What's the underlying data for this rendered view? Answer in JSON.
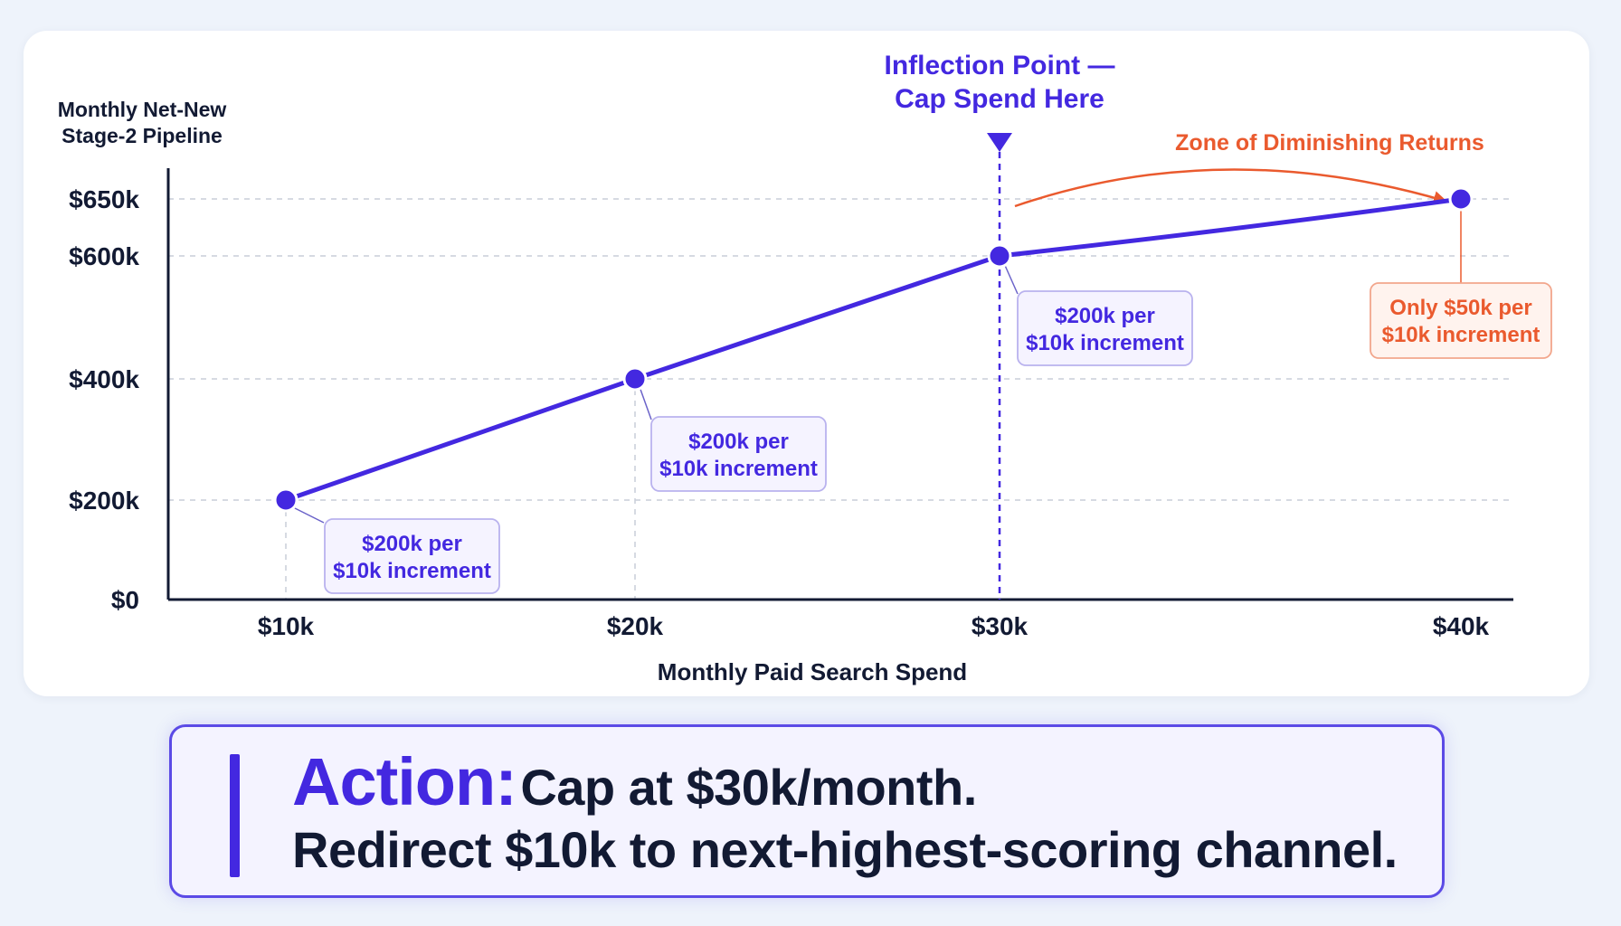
{
  "chart_data": {
    "type": "line",
    "ylabel": "Monthly Net-New\nStage-2 Pipeline",
    "xlabel": "Monthly Paid Search Spend",
    "x_ticks": [
      "$10k",
      "$20k",
      "$30k",
      "$40k"
    ],
    "y_ticks": [
      {
        "value": 0,
        "label": "$0"
      },
      {
        "value": 200,
        "label": "$200k"
      },
      {
        "value": 400,
        "label": "$400k"
      },
      {
        "value": 600,
        "label": "$600k"
      },
      {
        "value": 650,
        "label": "$650k"
      }
    ],
    "x": [
      10,
      20,
      30,
      40
    ],
    "values": [
      200,
      400,
      600,
      650
    ],
    "ylim": [
      0,
      650
    ],
    "grid": "horizontal dashed",
    "colors": {
      "series": "#4328e0",
      "axis": "#121a33",
      "grid": "#c9ced9",
      "warning": "#ea5a2e"
    },
    "annotations": [
      {
        "text": "$200k per\n$10k increment",
        "point": 0,
        "style": "primary"
      },
      {
        "text": "$200k per\n$10k increment",
        "point": 1,
        "style": "primary"
      },
      {
        "text": "$200k per\n$10k increment",
        "point": 2,
        "style": "primary"
      },
      {
        "text": "Only $50k per\n$10k increment",
        "point": 3,
        "style": "warning"
      }
    ],
    "inflection": {
      "x": 30,
      "label": "Inflection Point —\nCap Spend Here"
    },
    "zone_label": "Zone of Diminishing Returns"
  },
  "action": {
    "keyword": "Action:",
    "line1": "Cap at $30k/month.",
    "line2": "Redirect $10k to next-highest-scoring channel."
  }
}
